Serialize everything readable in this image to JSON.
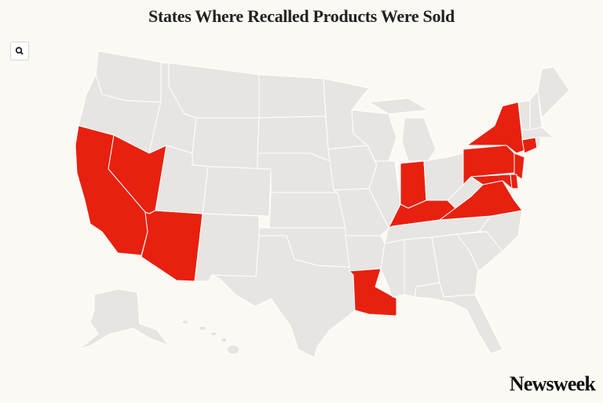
{
  "header": {
    "title": "States Where Recalled Products Were Sold"
  },
  "brand": "Newsweek"
}
